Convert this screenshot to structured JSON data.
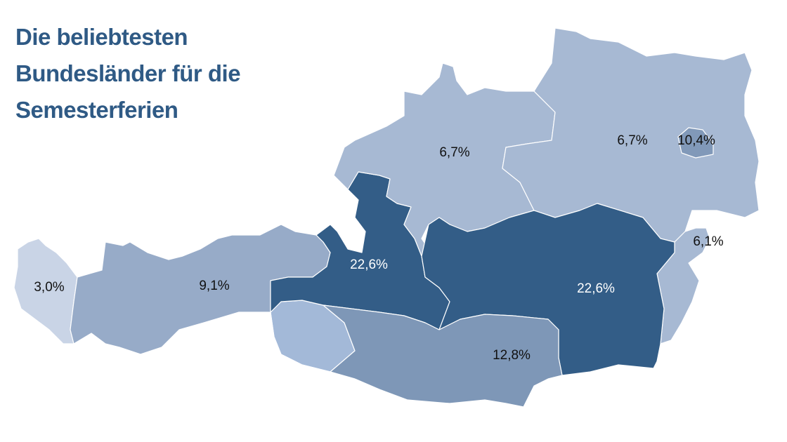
{
  "title_lines": [
    "Die beliebtesten",
    "Bundesländer für die",
    "Semesterferien"
  ],
  "title_color": "#2f5a85",
  "regions": [
    {
      "label": "3,0%",
      "color": "#c9d4e6",
      "label_color": "#111111"
    },
    {
      "label": "9,1%",
      "color": "#97abc8",
      "label_color": "#111111"
    },
    {
      "label": "22,6%",
      "color": "#335d87",
      "label_color": "#ffffff"
    },
    {
      "label": "6,7%",
      "color": "#a7b9d3",
      "label_color": "#111111"
    },
    {
      "label": "6,7%",
      "color": "#a7b9d3",
      "label_color": "#111111"
    },
    {
      "label": "10,4%",
      "color": "#8199b9",
      "label_color": "#111111"
    },
    {
      "label": "6,1%",
      "color": "#a7b9d3",
      "label_color": "#111111"
    },
    {
      "label": "22,6%",
      "color": "#335d87",
      "label_color": "#ffffff"
    },
    {
      "label": "12,8%",
      "color": "#7e97b7",
      "label_color": "#111111"
    }
  ]
}
